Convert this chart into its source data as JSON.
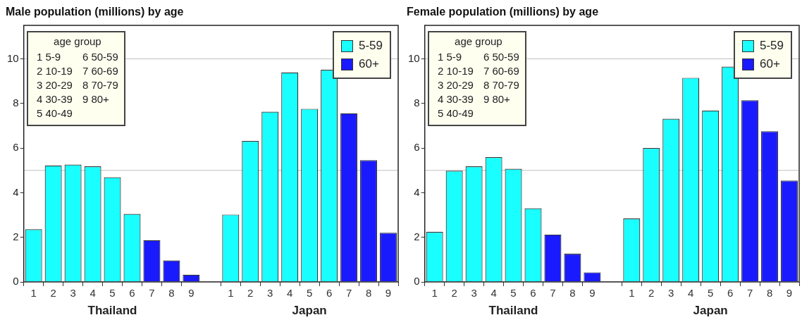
{
  "chart_data": [
    {
      "type": "bar",
      "title": "Male population (millions) by age",
      "categories": [
        "1",
        "2",
        "3",
        "4",
        "5",
        "6",
        "7",
        "8",
        "9",
        null,
        "1",
        "2",
        "3",
        "4",
        "5",
        "6",
        "7",
        "8",
        "9"
      ],
      "series": [
        {
          "name": "5-59",
          "color": "#19ffff",
          "values": [
            2.36,
            5.22,
            5.26,
            5.18,
            4.69,
            3.05,
            null,
            null,
            null,
            null,
            3.02,
            6.32,
            7.63,
            9.39,
            7.76,
            9.51,
            null,
            null,
            null
          ]
        },
        {
          "name": "60+",
          "color": "#1a1aff",
          "values": [
            null,
            null,
            null,
            null,
            null,
            null,
            1.87,
            0.96,
            0.32,
            null,
            null,
            null,
            null,
            null,
            null,
            null,
            7.56,
            5.46,
            2.2
          ]
        }
      ],
      "ylim": [
        0,
        11.5
      ],
      "yticks": [
        0,
        2,
        4,
        6,
        8,
        10
      ],
      "grid": false,
      "legend": "top right",
      "ref_lines": [
        {
          "axis": "y",
          "value": 5,
          "color": "#c0c0c0"
        },
        {
          "axis": "y",
          "value": 10,
          "color": "#c0c0c0"
        }
      ],
      "annotations": [
        "Thailand",
        "Japan",
        "age group",
        "1 5-9",
        "2 10-19",
        "3 20-29",
        "4 30-39",
        "5 40-49",
        "6 50-59",
        "7 60-69",
        "8 70-79",
        "9 80+"
      ]
    },
    {
      "type": "bar",
      "title": "Female population (millions) by age",
      "categories": [
        "1",
        "2",
        "3",
        "4",
        "5",
        "6",
        "7",
        "8",
        "9",
        null,
        "1",
        "2",
        "3",
        "4",
        "5",
        "6",
        "7",
        "8",
        "9"
      ],
      "series": [
        {
          "name": "5-59",
          "color": "#19ffff",
          "values": [
            2.24,
            4.98,
            5.18,
            5.59,
            5.07,
            3.3,
            null,
            null,
            null,
            null,
            2.84,
            6.0,
            7.31,
            9.15,
            7.68,
            9.65,
            null,
            null,
            null
          ]
        },
        {
          "name": "60+",
          "color": "#1a1aff",
          "values": [
            null,
            null,
            null,
            null,
            null,
            null,
            2.12,
            1.26,
            0.43,
            null,
            null,
            null,
            null,
            null,
            null,
            null,
            8.14,
            6.75,
            4.54
          ]
        }
      ],
      "ylim": [
        0,
        11.5
      ],
      "yticks": [
        0,
        2,
        4,
        6,
        8,
        10
      ],
      "grid": false,
      "legend": "top right",
      "ref_lines": [
        {
          "axis": "y",
          "value": 5,
          "color": "#c0c0c0"
        },
        {
          "axis": "y",
          "value": 10,
          "color": "#c0c0c0"
        }
      ],
      "annotations": [
        "Thailand",
        "Japan",
        "age group",
        "1 5-9",
        "2 10-19",
        "3 20-29",
        "4 30-39",
        "5 40-49",
        "6 50-59",
        "7 60-69",
        "8 70-79",
        "9 80+"
      ]
    }
  ]
}
